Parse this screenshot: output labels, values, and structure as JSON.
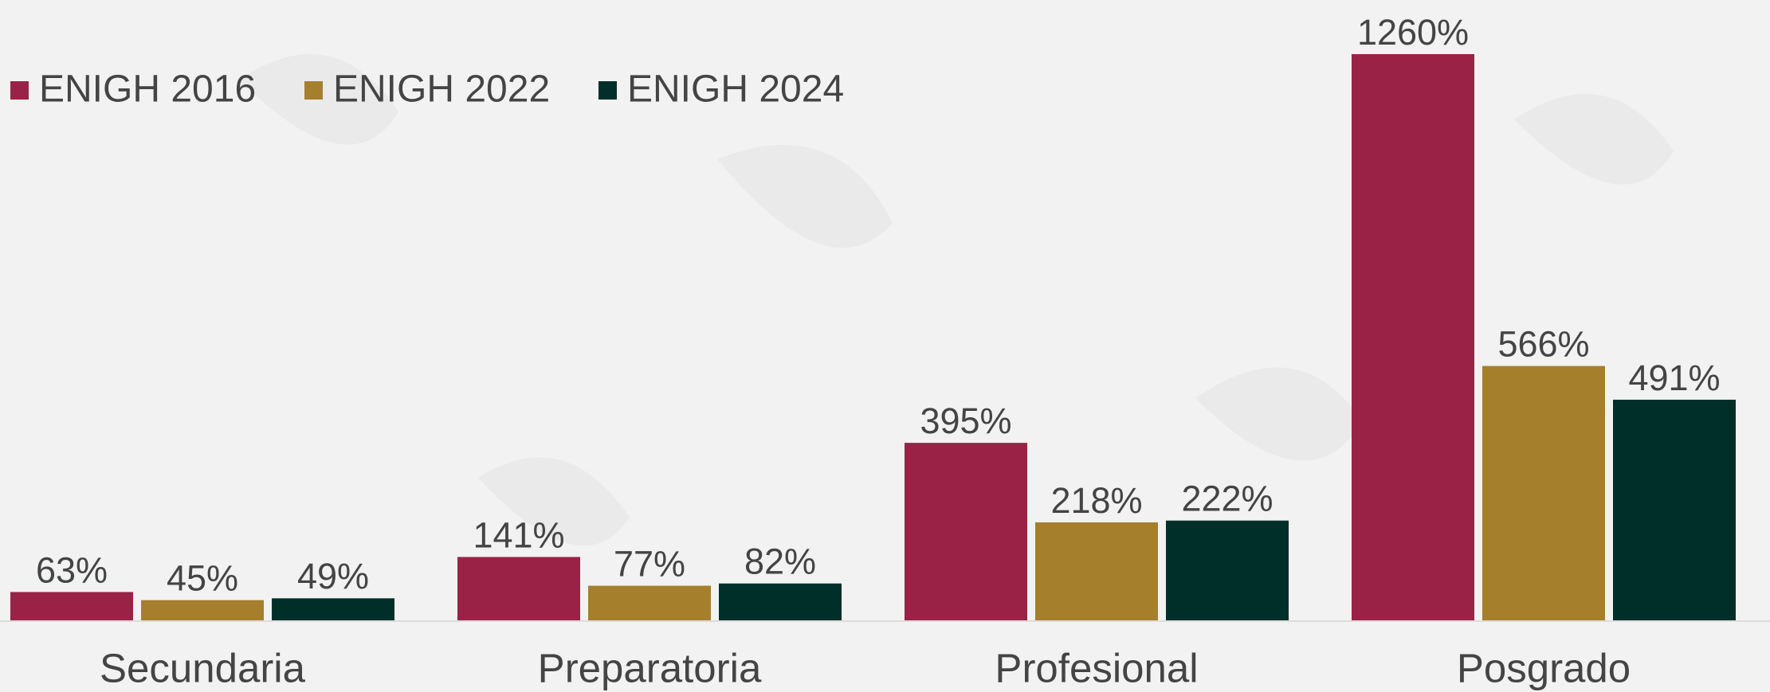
{
  "chart_data": {
    "type": "bar",
    "categories": [
      "Secundaria",
      "Preparatoria",
      "Profesional",
      "Posgrado"
    ],
    "series": [
      {
        "name": "ENIGH 2016",
        "color": "#9b2247",
        "values": [
          63,
          141,
          395,
          1260
        ],
        "value_labels": [
          "63%",
          "141%",
          "395%",
          "1260%"
        ]
      },
      {
        "name": "ENIGH 2022",
        "color": "#a57f2c",
        "values": [
          45,
          77,
          218,
          566
        ],
        "value_labels": [
          "45%",
          "77%",
          "218%",
          "566%"
        ]
      },
      {
        "name": "ENIGH 2024",
        "color": "#002f2a",
        "values": [
          49,
          82,
          222,
          491
        ],
        "value_labels": [
          "49%",
          "82%",
          "222%",
          "491%"
        ]
      }
    ],
    "legend": "top-left"
  }
}
